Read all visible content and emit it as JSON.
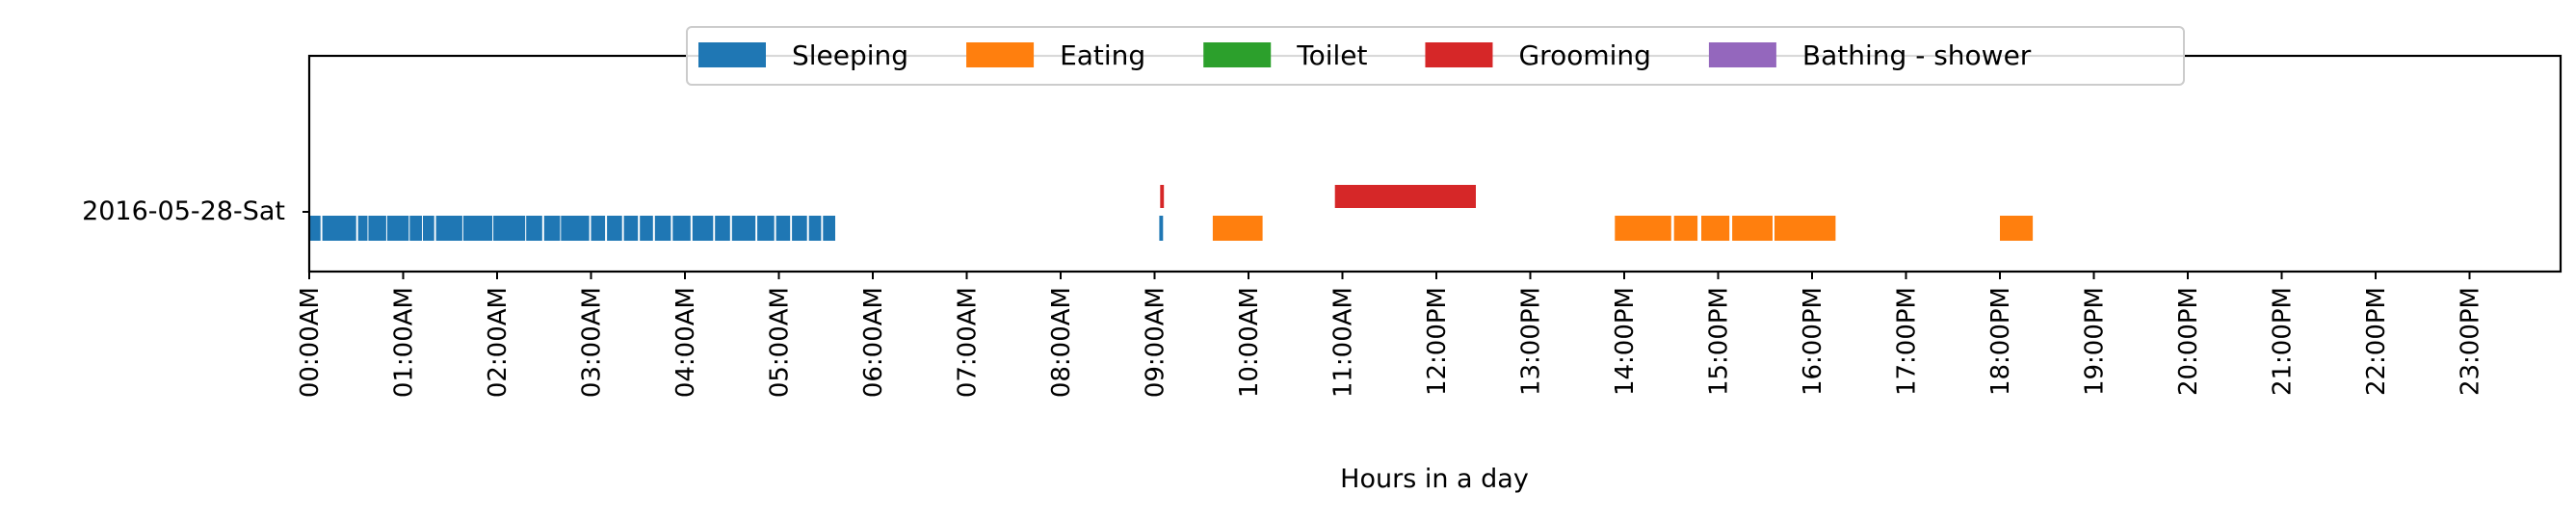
{
  "chart_data": {
    "type": "timeline",
    "title": "",
    "xlabel": "Hours in a day",
    "ylabel": "",
    "row_label": "2016-05-28-Sat",
    "x_range_hours": [
      0,
      24
    ],
    "x_ticks": [
      "00:00AM",
      "01:00AM",
      "02:00AM",
      "03:00AM",
      "04:00AM",
      "05:00AM",
      "06:00AM",
      "07:00AM",
      "08:00AM",
      "09:00AM",
      "10:00AM",
      "11:00AM",
      "12:00PM",
      "13:00PM",
      "14:00PM",
      "15:00PM",
      "16:00PM",
      "17:00PM",
      "18:00PM",
      "19:00PM",
      "20:00PM",
      "21:00PM",
      "22:00PM",
      "23:00PM"
    ],
    "legend_position": "top-center",
    "grid": false,
    "series": [
      {
        "name": "Sleeping",
        "color": "#1f77b4",
        "lane": "lower",
        "intervals": [
          [
            0.0,
            0.12
          ],
          [
            0.14,
            0.5
          ],
          [
            0.52,
            0.62
          ],
          [
            0.63,
            0.82
          ],
          [
            0.83,
            1.06
          ],
          [
            1.07,
            1.2
          ],
          [
            1.21,
            1.33
          ],
          [
            1.35,
            1.63
          ],
          [
            1.64,
            1.95
          ],
          [
            1.96,
            2.3
          ],
          [
            2.31,
            2.48
          ],
          [
            2.5,
            2.67
          ],
          [
            2.68,
            2.98
          ],
          [
            3.0,
            3.15
          ],
          [
            3.17,
            3.33
          ],
          [
            3.35,
            3.5
          ],
          [
            3.52,
            3.66
          ],
          [
            3.68,
            3.85
          ],
          [
            3.87,
            4.06
          ],
          [
            4.08,
            4.3
          ],
          [
            4.32,
            4.48
          ],
          [
            4.5,
            4.75
          ],
          [
            4.77,
            4.95
          ],
          [
            4.97,
            5.12
          ],
          [
            5.14,
            5.3
          ],
          [
            5.32,
            5.45
          ],
          [
            5.47,
            5.6
          ],
          [
            9.05,
            9.09
          ]
        ]
      },
      {
        "name": "Eating",
        "color": "#ff7f0e",
        "lane": "lower",
        "intervals": [
          [
            9.62,
            10.15
          ],
          [
            13.9,
            14.5
          ],
          [
            14.53,
            14.78
          ],
          [
            14.82,
            15.12
          ],
          [
            15.15,
            15.58
          ],
          [
            15.6,
            16.25
          ],
          [
            18.0,
            18.35
          ]
        ]
      },
      {
        "name": "Toilet",
        "color": "#2ca02c",
        "lane": "upper",
        "intervals": []
      },
      {
        "name": "Grooming",
        "color": "#d62728",
        "lane": "upper",
        "intervals": [
          [
            9.06,
            9.1
          ],
          [
            10.92,
            12.42
          ]
        ]
      },
      {
        "name": "Bathing - shower",
        "color": "#9467bd",
        "lane": "upper",
        "intervals": []
      }
    ]
  }
}
